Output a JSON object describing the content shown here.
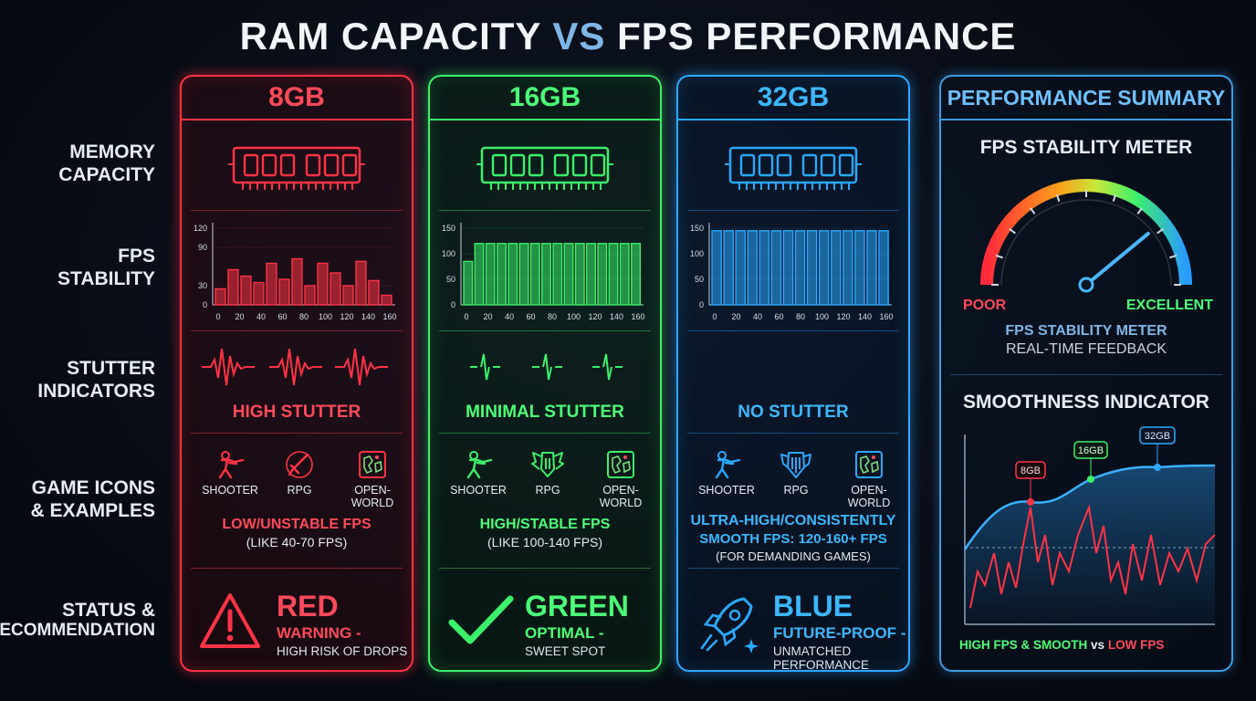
{
  "title": {
    "part1": "RAM CAPACITY",
    "vs": "VS",
    "part2": "FPS PERFORMANCE"
  },
  "row_labels": {
    "memory": [
      "MEMORY",
      "CAPACITY"
    ],
    "fps": [
      "FPS",
      "STABILITY"
    ],
    "stutter": [
      "STUTTER",
      "INDICATORS"
    ],
    "games": [
      "GAME ICONS",
      "& EXAMPLES"
    ],
    "status": [
      "STATUS &",
      "RECOMMENDATION"
    ]
  },
  "columns": [
    {
      "key": "c8",
      "header": "8GB",
      "color": "#ff3346",
      "chart_data": {
        "type": "bar",
        "x_ticks": [
          "0",
          "20",
          "40",
          "60",
          "80",
          "100",
          "120",
          "140",
          "160"
        ],
        "y_ticks": [
          "0",
          "30",
          "90",
          "120"
        ],
        "ylim": [
          0,
          120
        ],
        "values": [
          25,
          55,
          45,
          35,
          65,
          40,
          72,
          30,
          65,
          50,
          30,
          68,
          38,
          15
        ]
      },
      "stutter": "HIGH STUTTER",
      "games": [
        {
          "label": "SHOOTER",
          "icon": "shooter-icon"
        },
        {
          "label": "RPG",
          "icon": "sword-icon"
        },
        {
          "label": "OPEN-WORLD",
          "icon": "map-icon"
        }
      ],
      "fps_line1": "LOW/UNSTABLE FPS",
      "fps_line2": "(LIKE 40-70 FPS)",
      "fps_line3": "",
      "status": {
        "big": "RED",
        "mid": "WARNING -",
        "small": "HIGH RISK OF DROPS",
        "icon": "warning-icon"
      }
    },
    {
      "key": "c16",
      "header": "16GB",
      "color": "#3bf06a",
      "chart_data": {
        "type": "bar",
        "x_ticks": [
          "0",
          "20",
          "40",
          "60",
          "80",
          "100",
          "120",
          "140",
          "160"
        ],
        "y_ticks": [
          "0",
          "50",
          "100",
          "150"
        ],
        "ylim": [
          0,
          150
        ],
        "values": [
          85,
          120,
          120,
          120,
          120,
          120,
          120,
          120,
          120,
          120,
          120,
          120,
          120,
          120,
          120,
          120
        ]
      },
      "stutter": "MINIMAL STUTTER",
      "games": [
        {
          "label": "SHOOTER",
          "icon": "shooter-icon"
        },
        {
          "label": "RPG",
          "icon": "winged-helmet-icon"
        },
        {
          "label": "OPEN-WORLD",
          "icon": "map-icon"
        }
      ],
      "fps_line1": "HIGH/STABLE FPS",
      "fps_line2": "(LIKE 100-140 FPS)",
      "fps_line3": "",
      "status": {
        "big": "GREEN",
        "mid": "OPTIMAL -",
        "small": "SWEET SPOT",
        "icon": "check-icon"
      }
    },
    {
      "key": "c32",
      "header": "32GB",
      "color": "#2aa8ff",
      "chart_data": {
        "type": "bar",
        "x_ticks": [
          "0",
          "20",
          "40",
          "60",
          "80",
          "100",
          "120",
          "140",
          "160"
        ],
        "y_ticks": [
          "0",
          "50",
          "100",
          "150"
        ],
        "ylim": [
          0,
          150
        ],
        "values": [
          145,
          145,
          145,
          145,
          145,
          145,
          145,
          145,
          145,
          145,
          145,
          145,
          145,
          145,
          145
        ]
      },
      "stutter": "NO STUTTER",
      "games": [
        {
          "label": "SHOOTER",
          "icon": "shooter-icon"
        },
        {
          "label": "RPG",
          "icon": "shield-icon"
        },
        {
          "label": "OPEN-WORLD",
          "icon": "map-icon"
        }
      ],
      "fps_line1": "ULTRA-HIGH/CONSISTENTLY",
      "fps_line2": "SMOOTH FPS: 120-160+ FPS",
      "fps_line3": "(FOR DEMANDING GAMES)",
      "status": {
        "big": "BLUE",
        "mid": "FUTURE-PROOF -",
        "small": "UNMATCHED PERFORMANCE",
        "icon": "rocket-icon"
      }
    }
  ],
  "summary": {
    "header": "PERFORMANCE SUMMARY",
    "meter_title": "FPS STABILITY METER",
    "meter_poor": "POOR",
    "meter_excellent": "EXCELLENT",
    "meter_sub1": "FPS STABILITY METER",
    "meter_sub2": "REAL-TIME FEEDBACK",
    "meter_value": 0.78,
    "smooth_title": "SMOOTHNESS INDICATOR",
    "markers": [
      "8GB",
      "16GB",
      "32GB"
    ],
    "legend_high": "HIGH FPS & SMOOTH",
    "legend_vs": "vs",
    "legend_low": "LOW FPS"
  }
}
